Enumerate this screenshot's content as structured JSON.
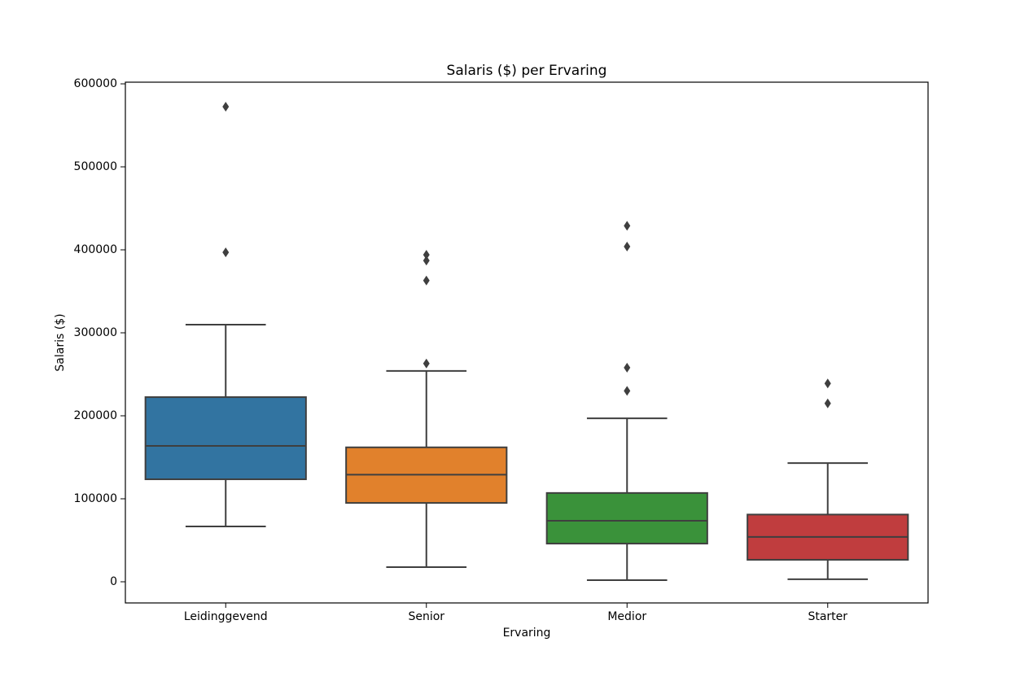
{
  "chart_data": {
    "type": "box",
    "title": "Salaris ($) per Ervaring",
    "x_label": "Ervaring",
    "y_label": "Salaris ($)",
    "categories": [
      "Leidinggevend",
      "Senior",
      "Medior",
      "Starter"
    ],
    "boxes": [
      {
        "color": "#3274a1",
        "whislo": 66700,
        "q1": 123500,
        "med": 163700,
        "q3": 222500,
        "whishi": 309800,
        "fliers": [
          572500,
          397000
        ]
      },
      {
        "color": "#e1812c",
        "whislo": 17600,
        "q1": 95000,
        "med": 129000,
        "q3": 162000,
        "whishi": 254000,
        "fliers": [
          263000,
          363000,
          387000,
          394000
        ]
      },
      {
        "color": "#3a923a",
        "whislo": 2000,
        "q1": 46000,
        "med": 73500,
        "q3": 107000,
        "whishi": 197000,
        "fliers": [
          230000,
          258000,
          404000,
          429000
        ]
      },
      {
        "color": "#c03d3e",
        "whislo": 3000,
        "q1": 26500,
        "med": 54000,
        "q3": 81000,
        "whishi": 143000,
        "fliers": [
          215000,
          239000
        ]
      }
    ],
    "ylim": [
      -25500,
      602000
    ],
    "yticks": [
      0,
      100000,
      200000,
      300000,
      400000,
      500000,
      600000
    ],
    "grid": false
  }
}
